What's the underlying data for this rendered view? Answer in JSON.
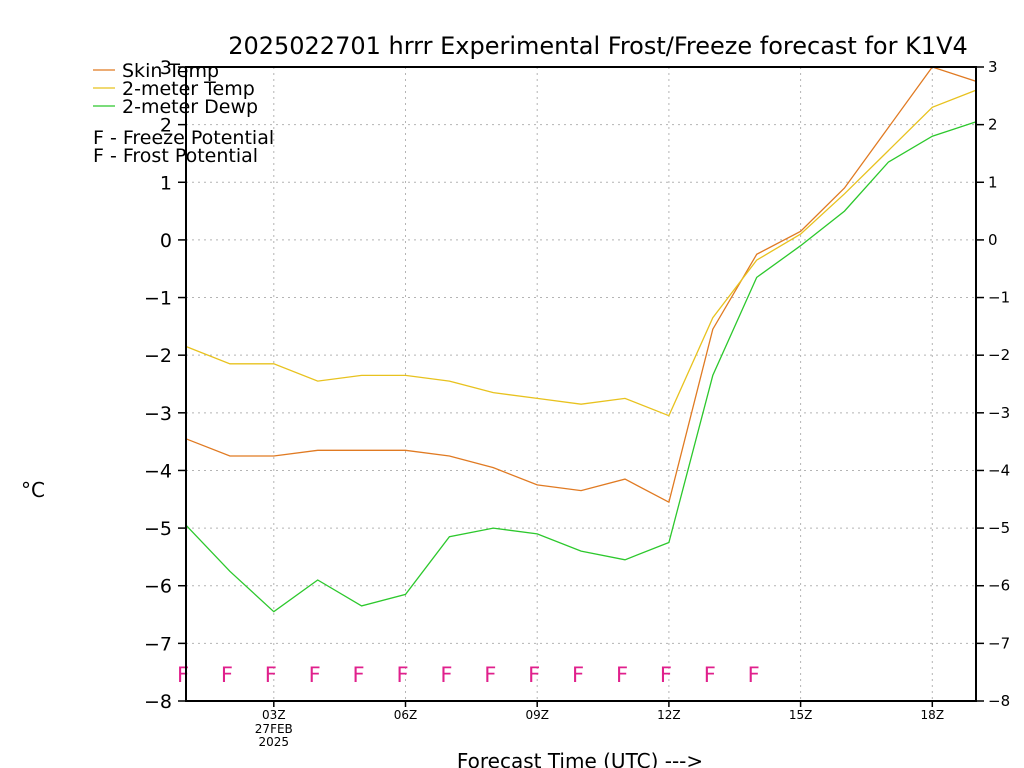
{
  "chart_data": {
    "type": "line",
    "title": "2025022701 hrrr Experimental Frost/Freeze forecast for K1V4",
    "xlabel": "Forecast Time (UTC) --->",
    "ylabel": "°C",
    "ylim": [
      -8,
      3
    ],
    "yticks": [
      -8,
      -7,
      -6,
      -5,
      -4,
      -3,
      -2,
      -1,
      0,
      1,
      2,
      3
    ],
    "grid": true,
    "legend_position": "top-left",
    "x": [
      "01Z",
      "02Z",
      "03Z",
      "04Z",
      "05Z",
      "06Z",
      "07Z",
      "08Z",
      "09Z",
      "10Z",
      "11Z",
      "12Z",
      "13Z",
      "14Z",
      "15Z",
      "16Z",
      "17Z",
      "18Z",
      "19Z"
    ],
    "x_tick_labels": [
      "03Z",
      "06Z",
      "09Z",
      "12Z",
      "15Z",
      "18Z"
    ],
    "date_label": {
      "day": "27FEB",
      "year": "2025"
    },
    "series": [
      {
        "name": "Skin Temp",
        "color": "#e07a22",
        "values": [
          -3.45,
          -3.75,
          -3.75,
          -3.65,
          -3.65,
          -3.65,
          -3.75,
          -3.95,
          -4.25,
          -4.35,
          -4.15,
          -4.55,
          -1.55,
          -0.25,
          0.15,
          0.9,
          1.95,
          3.0,
          2.75
        ]
      },
      {
        "name": "2-meter Temp",
        "color": "#e8c21e",
        "values": [
          -1.85,
          -2.15,
          -2.15,
          -2.45,
          -2.35,
          -2.35,
          -2.45,
          -2.65,
          -2.75,
          -2.85,
          -2.75,
          -3.05,
          -1.35,
          -0.35,
          0.1,
          0.8,
          1.55,
          2.3,
          2.6
        ]
      },
      {
        "name": "2-meter Dewp",
        "color": "#2cc82c",
        "values": [
          -4.95,
          -5.75,
          -6.45,
          -5.9,
          -6.35,
          -6.15,
          -5.15,
          -5.0,
          -5.1,
          -5.4,
          -5.55,
          -5.25,
          -2.35,
          -0.65,
          -0.1,
          0.5,
          1.35,
          1.8,
          2.05
        ]
      }
    ],
    "flags": {
      "freeze_label": "F",
      "freeze_color": "#e0208c",
      "freeze_x": [
        "01Z",
        "02Z",
        "03Z",
        "04Z",
        "05Z",
        "06Z",
        "07Z",
        "08Z",
        "09Z",
        "10Z",
        "11Z",
        "12Z",
        "13Z",
        "14Z"
      ]
    },
    "legend": {
      "freeze_text": "F - Freeze Potential",
      "frost_text": "F - Frost Potential",
      "freeze_color": "#e0208c",
      "frost_color": "#4a5ae8"
    }
  }
}
